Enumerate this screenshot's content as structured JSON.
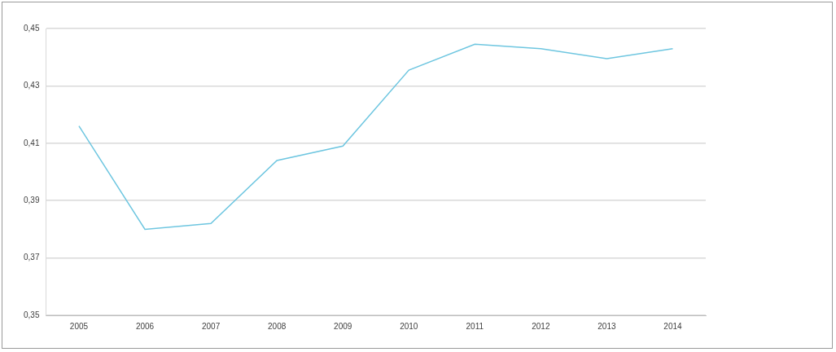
{
  "chart_data": {
    "type": "line",
    "categories": [
      "2005",
      "2006",
      "2007",
      "2008",
      "2009",
      "2010",
      "2011",
      "2012",
      "2013",
      "2014"
    ],
    "values": [
      0.416,
      0.38,
      0.382,
      0.404,
      0.409,
      0.4355,
      0.4445,
      0.443,
      0.4395,
      0.443
    ],
    "color": "#6ec6e0",
    "ylim": [
      0.35,
      0.45
    ],
    "yticks": [
      {
        "value": 0.35,
        "label": "0,35"
      },
      {
        "value": 0.37,
        "label": "0,37"
      },
      {
        "value": 0.39,
        "label": "0,39"
      },
      {
        "value": 0.41,
        "label": "0,41"
      },
      {
        "value": 0.43,
        "label": "0,43"
      },
      {
        "value": 0.45,
        "label": "0,45"
      }
    ],
    "grid": true
  }
}
